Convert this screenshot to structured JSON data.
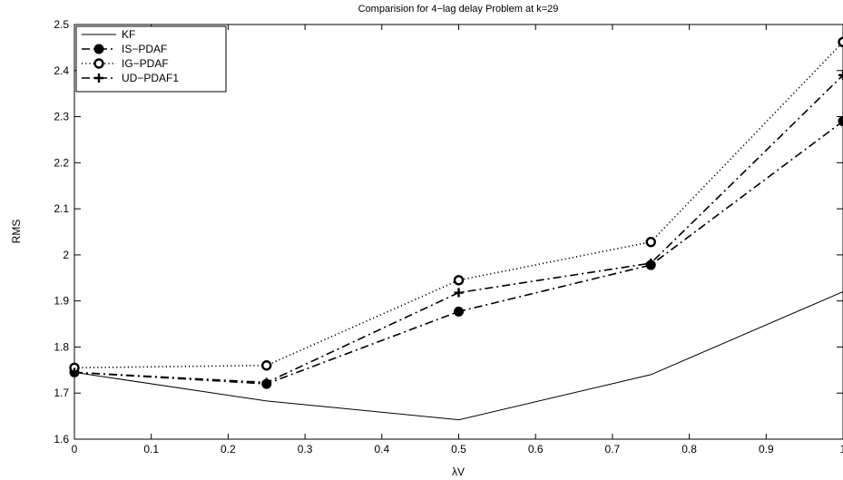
{
  "chart_data": {
    "type": "line",
    "title": "Comparision for 4−lag delay Problem at k=29",
    "xlabel": "λV",
    "ylabel": "RMS",
    "xlim": [
      0,
      1
    ],
    "ylim": [
      1.6,
      2.5
    ],
    "x": [
      0,
      0.25,
      0.5,
      0.75,
      1
    ],
    "xticks": [
      0,
      0.1,
      0.2,
      0.3,
      0.4,
      0.5,
      0.6,
      0.7,
      0.8,
      0.9,
      1
    ],
    "xtick_labels": [
      "0",
      "0.1",
      "0.2",
      "0.3",
      "0.4",
      "0.5",
      "0.6",
      "0.7",
      "0.8",
      "0.9",
      "1"
    ],
    "yticks": [
      1.6,
      1.7,
      1.8,
      1.9,
      2.0,
      2.1,
      2.2,
      2.3,
      2.4,
      2.5
    ],
    "ytick_labels": [
      "1.6",
      "1.7",
      "1.8",
      "1.9",
      "2",
      "2.1",
      "2.2",
      "2.3",
      "2.4",
      "2.5"
    ],
    "grid": false,
    "legend_position": "top-left",
    "series": [
      {
        "name": "KF",
        "values": [
          1.745,
          1.683,
          1.642,
          1.74,
          1.92
        ],
        "line": "solid",
        "marker": "none",
        "color": "#000000"
      },
      {
        "name": "IS−PDAF",
        "values": [
          1.745,
          1.72,
          1.877,
          1.978,
          2.29
        ],
        "line": "dashdot",
        "marker": "filled-circle",
        "color": "#000000"
      },
      {
        "name": "IG−PDAF",
        "values": [
          1.755,
          1.76,
          1.945,
          2.028,
          2.462
        ],
        "line": "dotted",
        "marker": "open-circle",
        "color": "#000000"
      },
      {
        "name": "UD−PDAF1",
        "values": [
          1.745,
          1.723,
          1.918,
          1.982,
          2.39
        ],
        "line": "dashdot",
        "marker": "plus",
        "color": "#000000"
      }
    ]
  }
}
